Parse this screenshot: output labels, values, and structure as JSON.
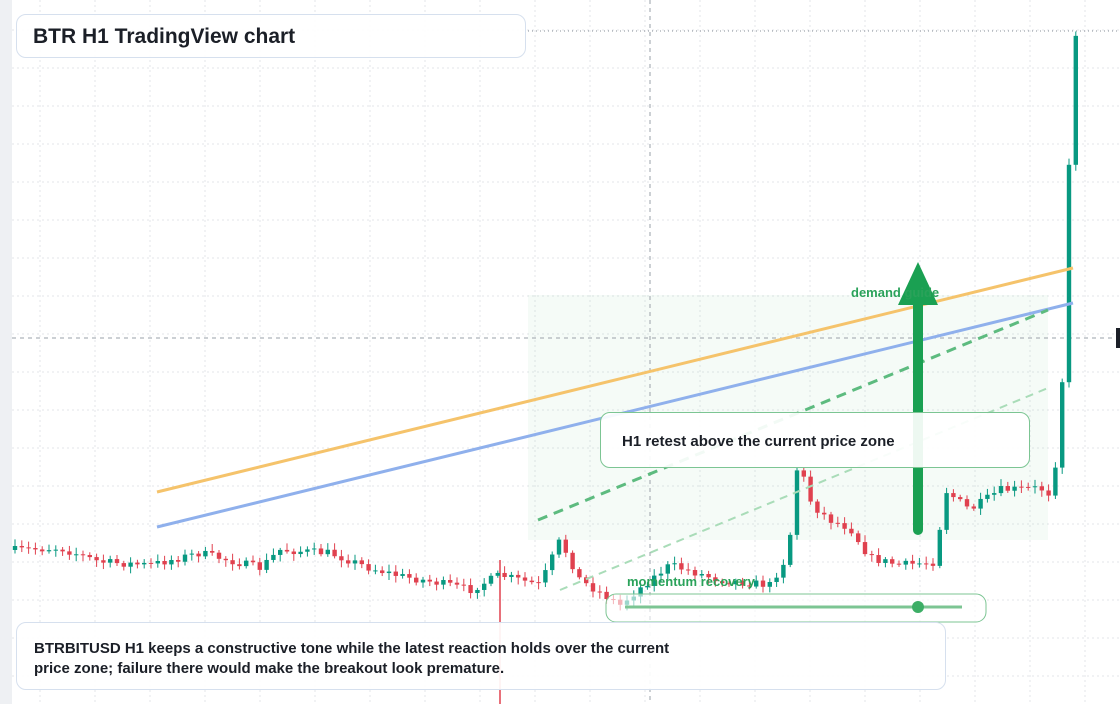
{
  "header": {
    "title": "BTR H1 TradingView chart"
  },
  "annotations": {
    "demand": "demand guide",
    "retest": "H1 retest above the current price zone",
    "momentum": "momentum recovery"
  },
  "caption": {
    "text": "BTRBITUSD H1 keeps a constructive tone while the latest reaction holds over the current price zone; failure there would make the breakout look premature."
  }
}
